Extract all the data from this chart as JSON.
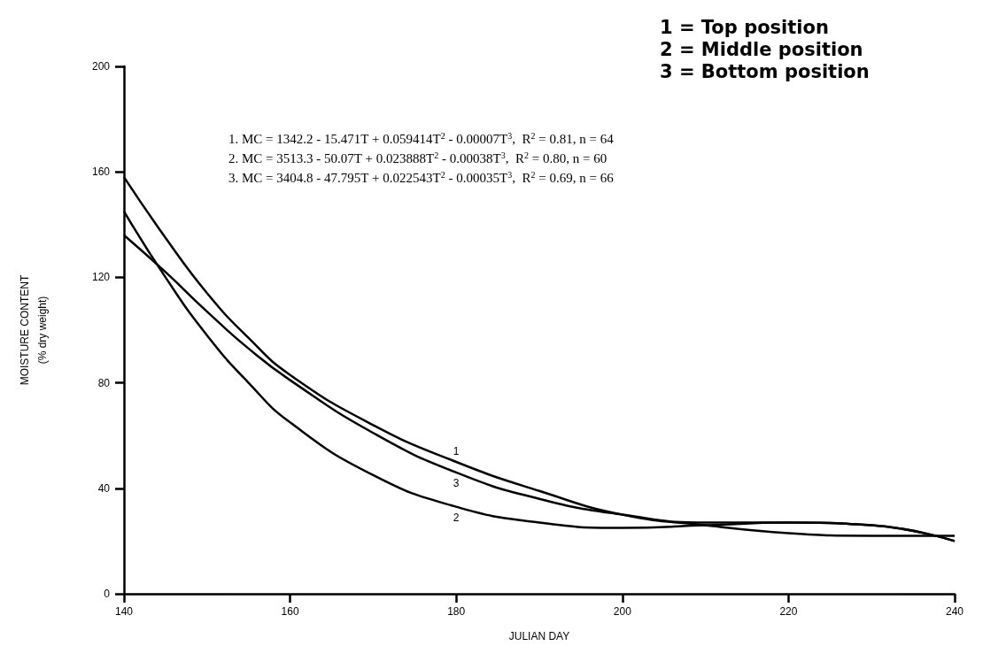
{
  "chart_data": {
    "type": "line",
    "xlabel": "JULIAN DAY",
    "ylabel": "MOISTURE CONTENT\n(% dry weight)",
    "x": [
      140,
      145,
      150,
      155,
      160,
      170,
      180,
      190,
      200,
      210,
      220,
      230,
      240
    ],
    "xlim": [
      140,
      240
    ],
    "xticks": [
      140,
      160,
      180,
      200,
      220,
      240
    ],
    "ylim": [
      0,
      200
    ],
    "yticks": [
      0,
      40,
      80,
      120,
      160,
      200
    ],
    "grid": false,
    "marker": "none",
    "line_style": "solid",
    "series": [
      {
        "name": "1",
        "color": "#000000",
        "values": [
          158,
          135,
          114,
          97,
          83,
          64,
          50,
          39,
          30,
          26,
          23,
          22,
          22
        ]
      },
      {
        "name": "2",
        "color": "#000000",
        "values": [
          145,
          120,
          98,
          80,
          65,
          45,
          33,
          27,
          25,
          26,
          27,
          26,
          20
        ]
      },
      {
        "name": "3",
        "color": "#000000",
        "values": [
          136,
          122,
          107,
          93,
          81,
          61,
          46,
          36,
          30,
          27,
          27,
          26,
          20
        ]
      }
    ],
    "annotations": [
      "1 = Top position",
      "2 = Middle position",
      "3 = Bottom position",
      "1. MC = 1342.2 - 15.471T + 0.059414T$^{2}$ - 0.00007T$^{3}$,  R$^{2}$ = 0.81, n = 64",
      "2. MC = 3513.3 - 50.07T + 0.023888T$^{2}$ - 0.00038T$^{3}$,  R$^{2}$ = 0.80, n = 60",
      "3. MC = 3404.8 - 47.795T + 0.022543T$^{2}$ - 0.00035T$^{3}$,  R$^{2}$ = 0.69, n = 66"
    ]
  }
}
